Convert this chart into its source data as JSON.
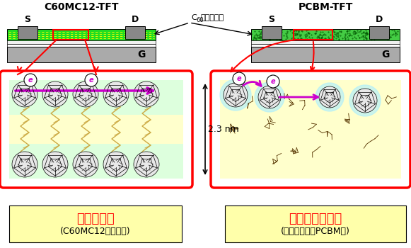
{
  "title_left": "C60MC12-TFT",
  "title_right": "PCBM-TFT",
  "label_s": "S",
  "label_d": "D",
  "label_g": "G",
  "annotation_c60": "C",
  "annotation_60": "60",
  "annotation_rest": "誘導体薄膜",
  "dim_label": "2.3 nm",
  "label_band": "バンド伝導",
  "label_band_sub": "(C60MC12結晶粒中)",
  "label_hop": "ホッピング伝導",
  "label_hop_sub": "(アモルファスPCBM膜)",
  "bg_color": "#ffffff",
  "gray_electrode": "#888888",
  "gray_gate": "#aaaaaa",
  "green_stripe": "#22dd22",
  "green_pcbm": "#44cc44",
  "yellow_layer": "#eeee66",
  "white_layer": "#ffffff",
  "box_left_bg": "#ddffdd",
  "box_right_bg": "#ffffcc",
  "box_border": "#ff0000",
  "magenta": "#cc00cc",
  "electron_label": "e",
  "label_yellow_bg": "#ffffaa",
  "c60_fill": "#e8e8e8",
  "chain_color": "#ccaa44"
}
